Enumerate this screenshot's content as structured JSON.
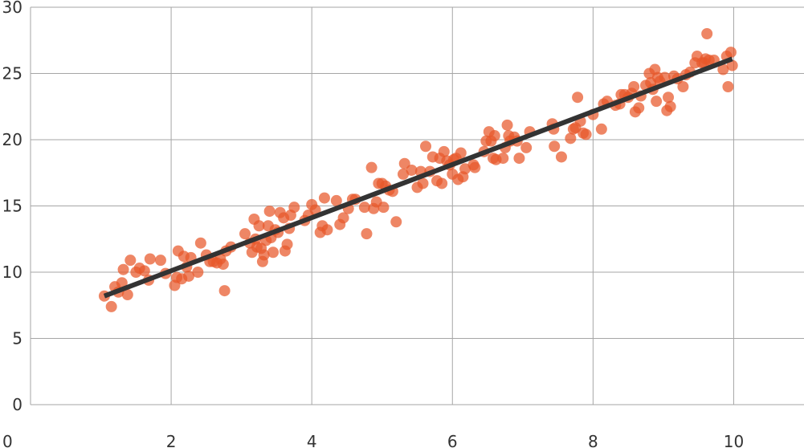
{
  "chart_data": {
    "type": "scatter",
    "xlim": [
      0,
      11
    ],
    "ylim": [
      0,
      30
    ],
    "x_ticks": [
      0,
      2,
      4,
      6,
      8,
      10
    ],
    "y_ticks": [
      0,
      5,
      10,
      15,
      20,
      25,
      30
    ],
    "grid": true,
    "colors": {
      "points": "#e8582a",
      "trend_line": "#333333",
      "grid": "#a6a6a6",
      "axis_text": "#333333"
    },
    "series": [
      {
        "type": "scatter",
        "points": [
          [
            1.05,
            8.2
          ],
          [
            1.15,
            7.4
          ],
          [
            1.2,
            8.9
          ],
          [
            1.25,
            8.5
          ],
          [
            1.3,
            9.2
          ],
          [
            1.32,
            10.2
          ],
          [
            1.38,
            8.3
          ],
          [
            1.42,
            10.9
          ],
          [
            1.5,
            10.0
          ],
          [
            1.55,
            10.3
          ],
          [
            1.62,
            10.1
          ],
          [
            1.68,
            9.4
          ],
          [
            1.7,
            11.0
          ],
          [
            1.85,
            10.9
          ],
          [
            1.92,
            9.9
          ],
          [
            2.05,
            9.0
          ],
          [
            2.08,
            9.6
          ],
          [
            2.1,
            11.6
          ],
          [
            2.15,
            9.5
          ],
          [
            2.18,
            11.2
          ],
          [
            2.22,
            10.4
          ],
          [
            2.25,
            9.7
          ],
          [
            2.28,
            11.1
          ],
          [
            2.38,
            10.0
          ],
          [
            2.42,
            12.2
          ],
          [
            2.5,
            11.3
          ],
          [
            2.55,
            10.8
          ],
          [
            2.6,
            10.8
          ],
          [
            2.65,
            10.7
          ],
          [
            2.7,
            11.0
          ],
          [
            2.74,
            10.6
          ],
          [
            2.76,
            8.6
          ],
          [
            2.78,
            11.6
          ],
          [
            2.85,
            11.9
          ],
          [
            3.05,
            12.9
          ],
          [
            3.12,
            12.2
          ],
          [
            3.15,
            11.5
          ],
          [
            3.18,
            14.0
          ],
          [
            3.2,
            12.5
          ],
          [
            3.22,
            11.9
          ],
          [
            3.25,
            13.5
          ],
          [
            3.28,
            11.8
          ],
          [
            3.3,
            10.8
          ],
          [
            3.32,
            11.3
          ],
          [
            3.35,
            12.4
          ],
          [
            3.38,
            13.5
          ],
          [
            3.4,
            14.6
          ],
          [
            3.42,
            12.6
          ],
          [
            3.45,
            11.5
          ],
          [
            3.48,
            13.2
          ],
          [
            3.52,
            13.0
          ],
          [
            3.55,
            14.5
          ],
          [
            3.6,
            14.1
          ],
          [
            3.62,
            11.6
          ],
          [
            3.65,
            12.1
          ],
          [
            3.68,
            13.3
          ],
          [
            3.7,
            14.3
          ],
          [
            3.75,
            14.9
          ],
          [
            3.9,
            13.9
          ],
          [
            3.95,
            14.3
          ],
          [
            4.0,
            15.1
          ],
          [
            4.05,
            14.7
          ],
          [
            4.12,
            13.0
          ],
          [
            4.15,
            13.5
          ],
          [
            4.18,
            15.6
          ],
          [
            4.22,
            13.2
          ],
          [
            4.35,
            15.4
          ],
          [
            4.4,
            13.6
          ],
          [
            4.45,
            14.1
          ],
          [
            4.52,
            14.8
          ],
          [
            4.58,
            15.5
          ],
          [
            4.62,
            15.5
          ],
          [
            4.75,
            14.9
          ],
          [
            4.78,
            12.9
          ],
          [
            4.85,
            17.9
          ],
          [
            4.88,
            14.8
          ],
          [
            4.92,
            15.3
          ],
          [
            4.95,
            16.7
          ],
          [
            5.0,
            16.7
          ],
          [
            5.02,
            14.9
          ],
          [
            5.05,
            16.5
          ],
          [
            5.1,
            16.2
          ],
          [
            5.15,
            16.1
          ],
          [
            5.2,
            13.8
          ],
          [
            5.3,
            17.4
          ],
          [
            5.32,
            18.2
          ],
          [
            5.42,
            17.7
          ],
          [
            5.5,
            16.4
          ],
          [
            5.55,
            17.6
          ],
          [
            5.58,
            16.7
          ],
          [
            5.62,
            19.5
          ],
          [
            5.68,
            17.6
          ],
          [
            5.72,
            18.7
          ],
          [
            5.78,
            16.9
          ],
          [
            5.82,
            18.6
          ],
          [
            5.85,
            16.7
          ],
          [
            5.88,
            19.1
          ],
          [
            5.92,
            18.4
          ],
          [
            5.96,
            18.1
          ],
          [
            6.0,
            17.4
          ],
          [
            6.02,
            18.5
          ],
          [
            6.05,
            18.6
          ],
          [
            6.08,
            17.0
          ],
          [
            6.12,
            19.0
          ],
          [
            6.15,
            17.2
          ],
          [
            6.18,
            17.8
          ],
          [
            6.3,
            18.1
          ],
          [
            6.32,
            17.9
          ],
          [
            6.45,
            19.1
          ],
          [
            6.48,
            19.9
          ],
          [
            6.52,
            20.6
          ],
          [
            6.55,
            19.9
          ],
          [
            6.58,
            18.6
          ],
          [
            6.6,
            20.3
          ],
          [
            6.62,
            18.5
          ],
          [
            6.72,
            18.6
          ],
          [
            6.75,
            19.4
          ],
          [
            6.78,
            21.1
          ],
          [
            6.8,
            20.3
          ],
          [
            6.82,
            19.9
          ],
          [
            6.88,
            20.2
          ],
          [
            6.92,
            19.9
          ],
          [
            6.95,
            18.6
          ],
          [
            7.05,
            19.4
          ],
          [
            7.1,
            20.6
          ],
          [
            7.42,
            21.2
          ],
          [
            7.44,
            20.8
          ],
          [
            7.45,
            19.5
          ],
          [
            7.55,
            18.7
          ],
          [
            7.68,
            20.1
          ],
          [
            7.72,
            20.8
          ],
          [
            7.75,
            20.9
          ],
          [
            7.78,
            23.2
          ],
          [
            7.82,
            21.4
          ],
          [
            7.86,
            20.5
          ],
          [
            7.9,
            20.4
          ],
          [
            8.0,
            21.9
          ],
          [
            8.12,
            20.8
          ],
          [
            8.15,
            22.7
          ],
          [
            8.2,
            22.9
          ],
          [
            8.32,
            22.6
          ],
          [
            8.38,
            22.7
          ],
          [
            8.4,
            23.4
          ],
          [
            8.45,
            23.4
          ],
          [
            8.5,
            23.2
          ],
          [
            8.55,
            23.5
          ],
          [
            8.58,
            24.0
          ],
          [
            8.6,
            22.1
          ],
          [
            8.65,
            22.4
          ],
          [
            8.68,
            23.3
          ],
          [
            8.75,
            24.1
          ],
          [
            8.8,
            25.0
          ],
          [
            8.82,
            24.3
          ],
          [
            8.85,
            23.8
          ],
          [
            8.88,
            25.3
          ],
          [
            8.9,
            22.9
          ],
          [
            8.92,
            24.7
          ],
          [
            8.95,
            24.4
          ],
          [
            9.02,
            24.7
          ],
          [
            9.05,
            22.2
          ],
          [
            9.07,
            23.2
          ],
          [
            9.1,
            22.5
          ],
          [
            9.15,
            24.8
          ],
          [
            9.2,
            24.6
          ],
          [
            9.28,
            24.0
          ],
          [
            9.32,
            24.9
          ],
          [
            9.38,
            25.1
          ],
          [
            9.45,
            25.8
          ],
          [
            9.48,
            26.3
          ],
          [
            9.55,
            25.8
          ],
          [
            9.58,
            25.8
          ],
          [
            9.6,
            26.1
          ],
          [
            9.62,
            28.0
          ],
          [
            9.65,
            26.0
          ],
          [
            9.72,
            26.0
          ],
          [
            9.85,
            25.3
          ],
          [
            9.9,
            26.3
          ],
          [
            9.92,
            24.0
          ],
          [
            9.96,
            26.6
          ],
          [
            9.98,
            25.6
          ]
        ]
      },
      {
        "type": "line",
        "points": [
          [
            1.05,
            8.2
          ],
          [
            9.98,
            26.1
          ]
        ]
      }
    ]
  }
}
